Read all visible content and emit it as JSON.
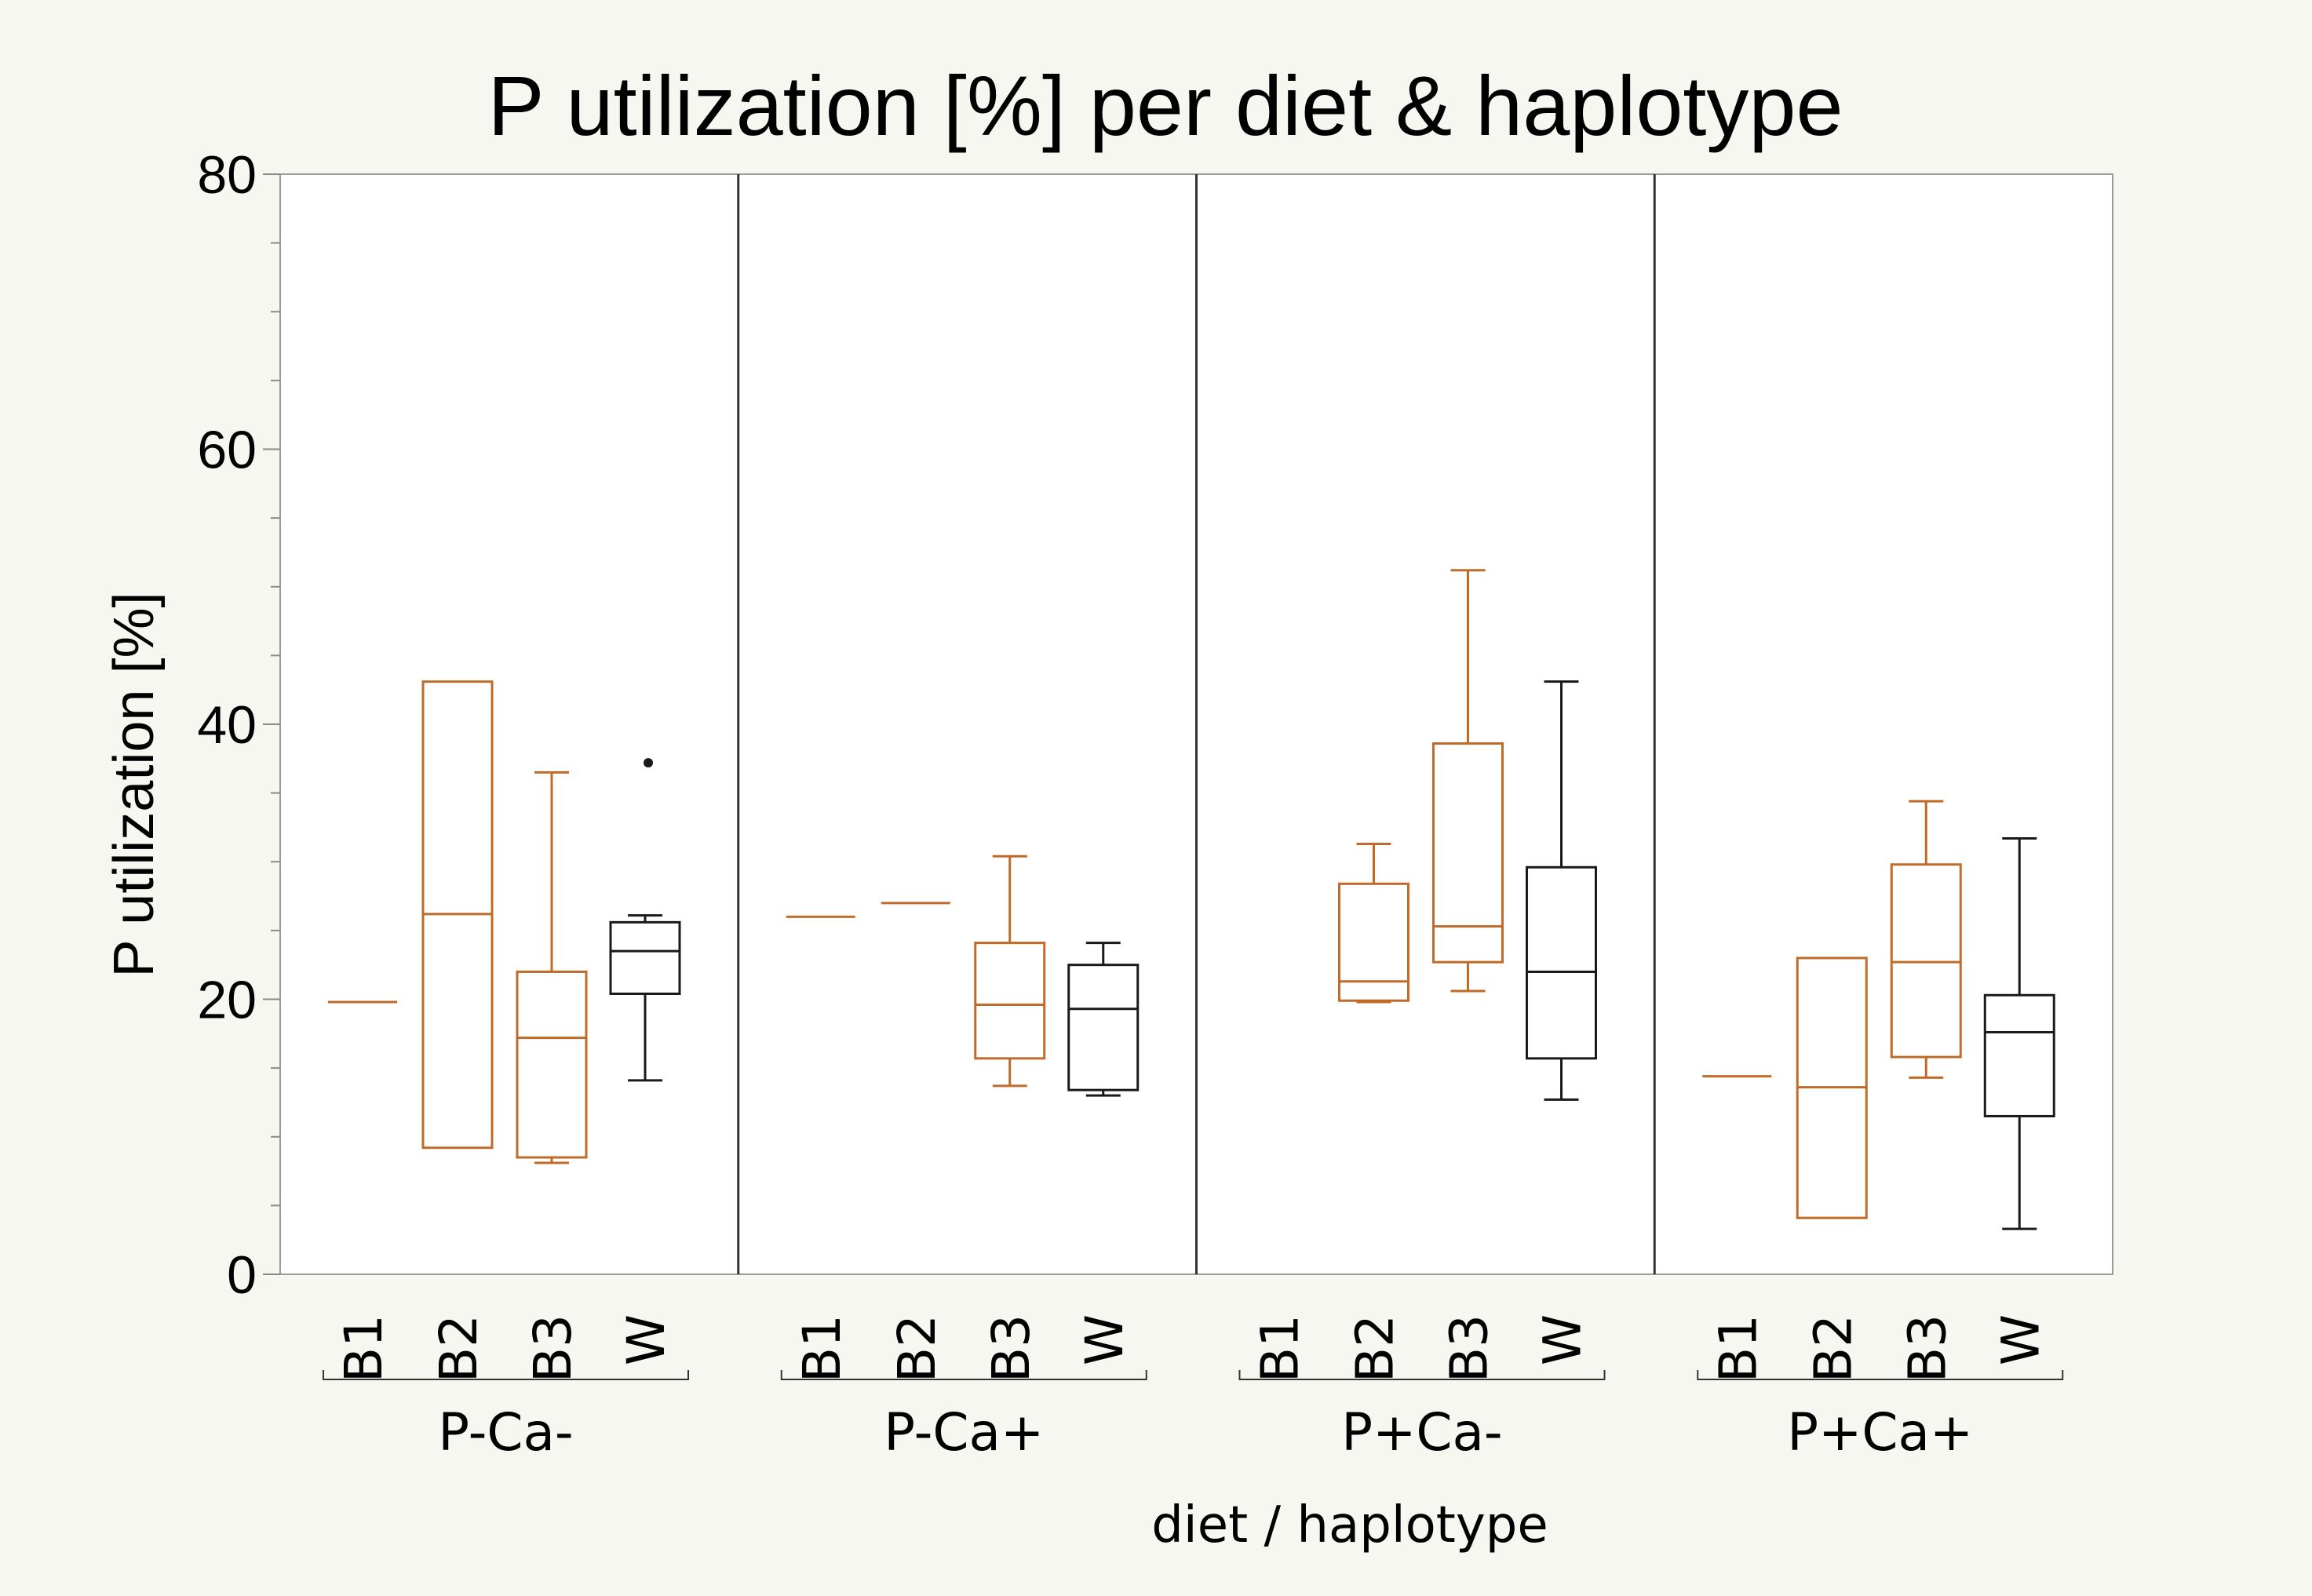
{
  "chart_data": {
    "type": "box",
    "title": "P utilization [%] per diet & haplotype",
    "ylabel": "P utilization [%]",
    "xlabel": "diet / haplotype",
    "ylim": [
      0,
      80
    ],
    "yticks": [
      0,
      20,
      40,
      60,
      80
    ],
    "colors": {
      "B": "#c06b2a",
      "W": "#1a1a1a"
    },
    "groups": [
      {
        "label": "P-Ca-",
        "boxes": [
          {
            "label": "B1",
            "series": "B",
            "whisker_low": 19.8,
            "q1": 19.8,
            "median": 19.8,
            "q3": 19.8,
            "whisker_high": 19.8,
            "outliers": []
          },
          {
            "label": "B2",
            "series": "B",
            "whisker_low": 9.2,
            "q1": 9.2,
            "median": 26.2,
            "q3": 43.1,
            "whisker_high": 43.1,
            "outliers": []
          },
          {
            "label": "B3",
            "series": "B",
            "whisker_low": 8.1,
            "q1": 8.5,
            "median": 17.2,
            "q3": 22.0,
            "whisker_high": 36.5,
            "outliers": []
          },
          {
            "label": "W",
            "series": "W",
            "whisker_low": 14.1,
            "q1": 20.4,
            "median": 23.5,
            "q3": 25.6,
            "whisker_high": 26.1,
            "outliers": [
              37.2
            ]
          }
        ]
      },
      {
        "label": "P-Ca+",
        "boxes": [
          {
            "label": "B1",
            "series": "B",
            "whisker_low": 26.0,
            "q1": 26.0,
            "median": 26.0,
            "q3": 26.0,
            "whisker_high": 26.0,
            "outliers": []
          },
          {
            "label": "B2",
            "series": "B",
            "whisker_low": 27.0,
            "q1": 27.0,
            "median": 27.0,
            "q3": 27.0,
            "whisker_high": 27.0,
            "outliers": []
          },
          {
            "label": "B3",
            "series": "B",
            "whisker_low": 13.7,
            "q1": 15.7,
            "median": 19.6,
            "q3": 24.1,
            "whisker_high": 30.4,
            "outliers": []
          },
          {
            "label": "W",
            "series": "W",
            "whisker_low": 13.0,
            "q1": 13.4,
            "median": 19.3,
            "q3": 22.5,
            "whisker_high": 24.1,
            "outliers": []
          }
        ]
      },
      {
        "label": "P+Ca-",
        "boxes": [
          {
            "label": "B1",
            "series": "B",
            "whisker_low": null,
            "q1": null,
            "median": null,
            "q3": null,
            "whisker_high": null,
            "outliers": []
          },
          {
            "label": "B2",
            "series": "B",
            "whisker_low": 19.8,
            "q1": 19.9,
            "median": 21.3,
            "q3": 28.4,
            "whisker_high": 31.3,
            "outliers": []
          },
          {
            "label": "B3",
            "series": "B",
            "whisker_low": 20.6,
            "q1": 22.7,
            "median": 25.3,
            "q3": 38.6,
            "whisker_high": 51.2,
            "outliers": []
          },
          {
            "label": "W",
            "series": "W",
            "whisker_low": 12.7,
            "q1": 15.7,
            "median": 22.0,
            "q3": 29.6,
            "whisker_high": 43.1,
            "outliers": []
          }
        ]
      },
      {
        "label": "P+Ca+",
        "boxes": [
          {
            "label": "B1",
            "series": "B",
            "whisker_low": 14.4,
            "q1": 14.4,
            "median": 14.4,
            "q3": 14.4,
            "whisker_high": 14.4,
            "outliers": []
          },
          {
            "label": "B2",
            "series": "B",
            "whisker_low": 4.1,
            "q1": 4.1,
            "median": 13.6,
            "q3": 23.0,
            "whisker_high": 23.0,
            "outliers": []
          },
          {
            "label": "B3",
            "series": "B",
            "whisker_low": 14.3,
            "q1": 15.8,
            "median": 22.7,
            "q3": 29.8,
            "whisker_high": 34.4,
            "outliers": []
          },
          {
            "label": "W",
            "series": "W",
            "whisker_low": 3.3,
            "q1": 11.5,
            "median": 17.6,
            "q3": 20.3,
            "whisker_high": 31.7,
            "outliers": []
          }
        ]
      }
    ]
  }
}
